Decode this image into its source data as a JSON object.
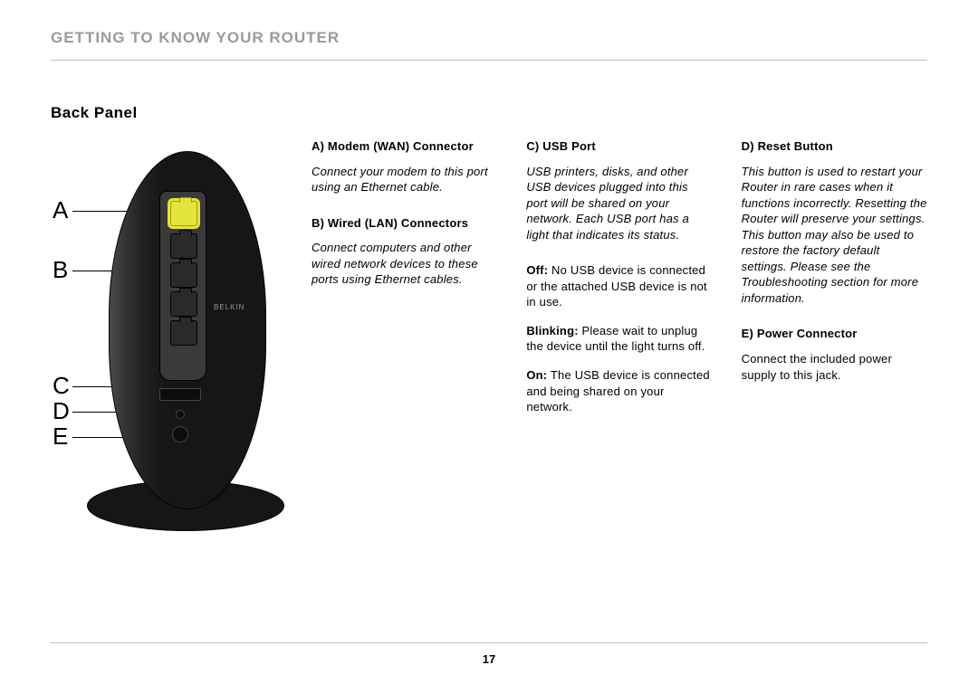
{
  "page": {
    "header": "GETTING TO KNOW YOUR ROUTER",
    "subsection": "Back Panel",
    "page_number": "17",
    "colors": {
      "header_text": "#9a9a9a",
      "body_text": "#000000",
      "rule": "#bdbdbd",
      "wan_port": "#e4e43a",
      "router_body": "#161616",
      "background": "#ffffff"
    },
    "typography": {
      "header_fontsize_pt": 13,
      "subsection_fontsize_pt": 13,
      "body_fontsize_pt": 10,
      "callout_letter_fontsize_pt": 20
    }
  },
  "diagram": {
    "brand_text": "BELKIN",
    "callouts": {
      "A": "A",
      "B": "B",
      "C": "C",
      "D": "D",
      "E": "E"
    }
  },
  "col1": {
    "A": {
      "heading": "A) Modem (WAN) Connector",
      "body_italic": "Connect your modem to this port using an Ethernet cable."
    },
    "B": {
      "heading": "B) Wired (LAN) Connectors",
      "body_italic": "Connect computers and other wired network devices to these ports using Ethernet cables."
    }
  },
  "col2": {
    "C": {
      "heading": "C) USB Port",
      "body_italic": "USB printers, disks, and other USB devices plugged into this port will be shared on your network. Each USB port has a light that indicates its status.",
      "statuses": [
        {
          "label": "Off:",
          "text": " No USB device is connected or the attached USB device is not in use."
        },
        {
          "label": "Blinking:",
          "text": " Please wait to unplug the device until the light turns off."
        },
        {
          "label": "On:",
          "text": " The USB device is connected and being shared on your network."
        }
      ]
    }
  },
  "col3": {
    "D": {
      "heading": "D) Reset Button",
      "body_italic": "This button is used to restart your Router in rare cases when it functions incorrectly. Resetting the Router will preserve your settings. This button may also be used to restore the factory default settings. Please see the Troubleshooting section for more information."
    },
    "E": {
      "heading": "E) Power Connector",
      "body": "Connect the included power supply to this jack."
    }
  }
}
